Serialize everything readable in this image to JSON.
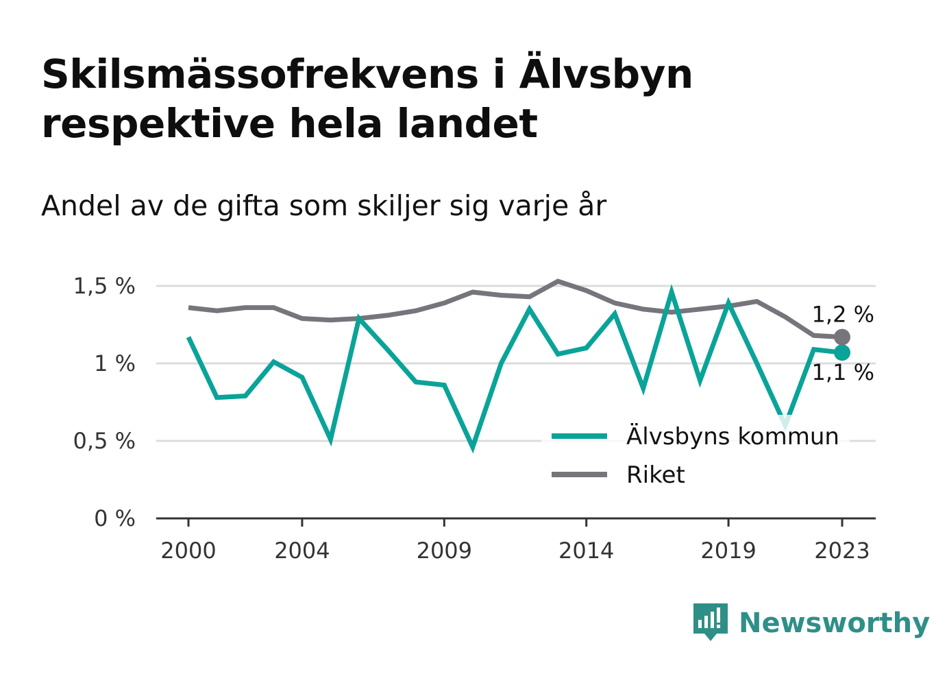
{
  "title": "Skilsmässofrekvens i Älvsbyn respektive hela landet",
  "subtitle": "Andel av de gifta som skiljer sig varje år",
  "brand": {
    "name": "Newsworthy",
    "icon": "newsworthy-logo-icon",
    "color": "#2f8f88"
  },
  "chart_data": {
    "type": "line",
    "x": [
      2000,
      2001,
      2002,
      2003,
      2004,
      2005,
      2006,
      2007,
      2008,
      2009,
      2010,
      2011,
      2012,
      2013,
      2014,
      2015,
      2016,
      2017,
      2018,
      2019,
      2020,
      2021,
      2022,
      2023
    ],
    "x_ticks": [
      "2000",
      "2004",
      "2009",
      "2014",
      "2019",
      "2023"
    ],
    "y_ticks": [
      "0 %",
      "0,5 %",
      "1 %",
      "1,5 %"
    ],
    "ylim": [
      0,
      1.5
    ],
    "grid": true,
    "legend_position": "bottom-right",
    "series": [
      {
        "name": "Älvsbyns kommun",
        "color": "#0aa399",
        "values": [
          1.17,
          0.78,
          0.79,
          1.01,
          0.91,
          0.51,
          1.29,
          1.09,
          0.88,
          0.86,
          0.46,
          1.0,
          1.35,
          1.06,
          1.1,
          1.32,
          0.84,
          1.46,
          0.89,
          1.39,
          1.0,
          0.6,
          1.09,
          1.07
        ],
        "end_label": "1,1 %"
      },
      {
        "name": "Riket",
        "color": "#76757c",
        "values": [
          1.36,
          1.34,
          1.36,
          1.36,
          1.29,
          1.28,
          1.29,
          1.31,
          1.34,
          1.39,
          1.46,
          1.44,
          1.43,
          1.53,
          1.47,
          1.39,
          1.35,
          1.33,
          1.35,
          1.37,
          1.4,
          1.3,
          1.18,
          1.17
        ],
        "end_label": "1,2 %"
      }
    ]
  }
}
